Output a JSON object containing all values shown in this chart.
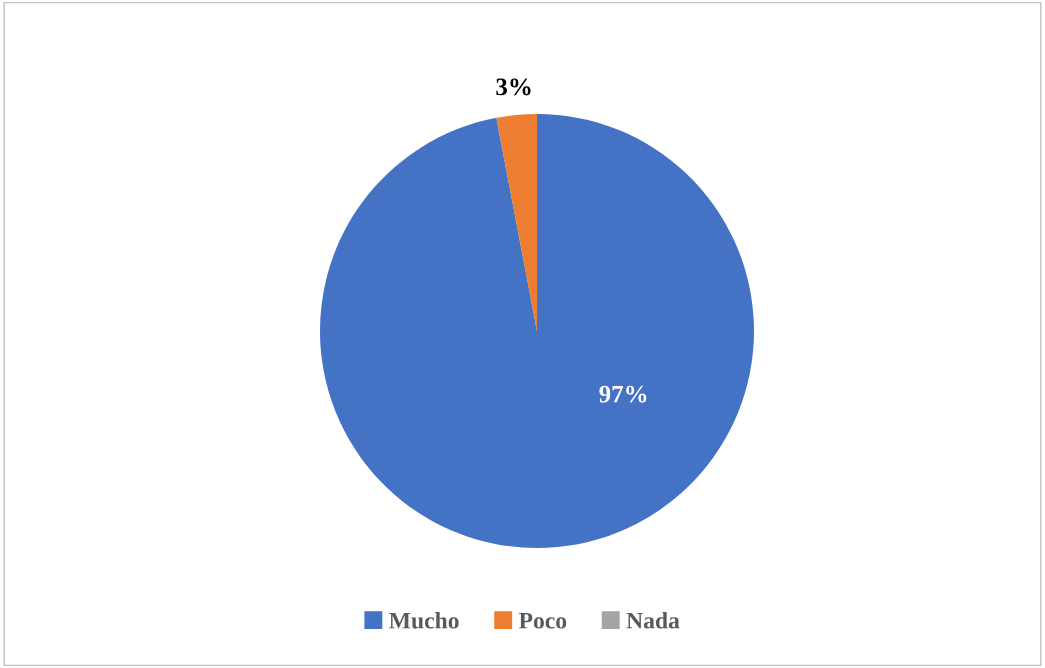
{
  "chart_data": {
    "type": "pie",
    "categories": [
      "Mucho",
      "Poco",
      "Nada"
    ],
    "values": [
      97,
      3,
      0
    ],
    "colors": [
      "#4472c4",
      "#ed7d31",
      "#a5a5a5"
    ],
    "value_labels": [
      "97%",
      "3%",
      null
    ],
    "legend": "bottom"
  }
}
